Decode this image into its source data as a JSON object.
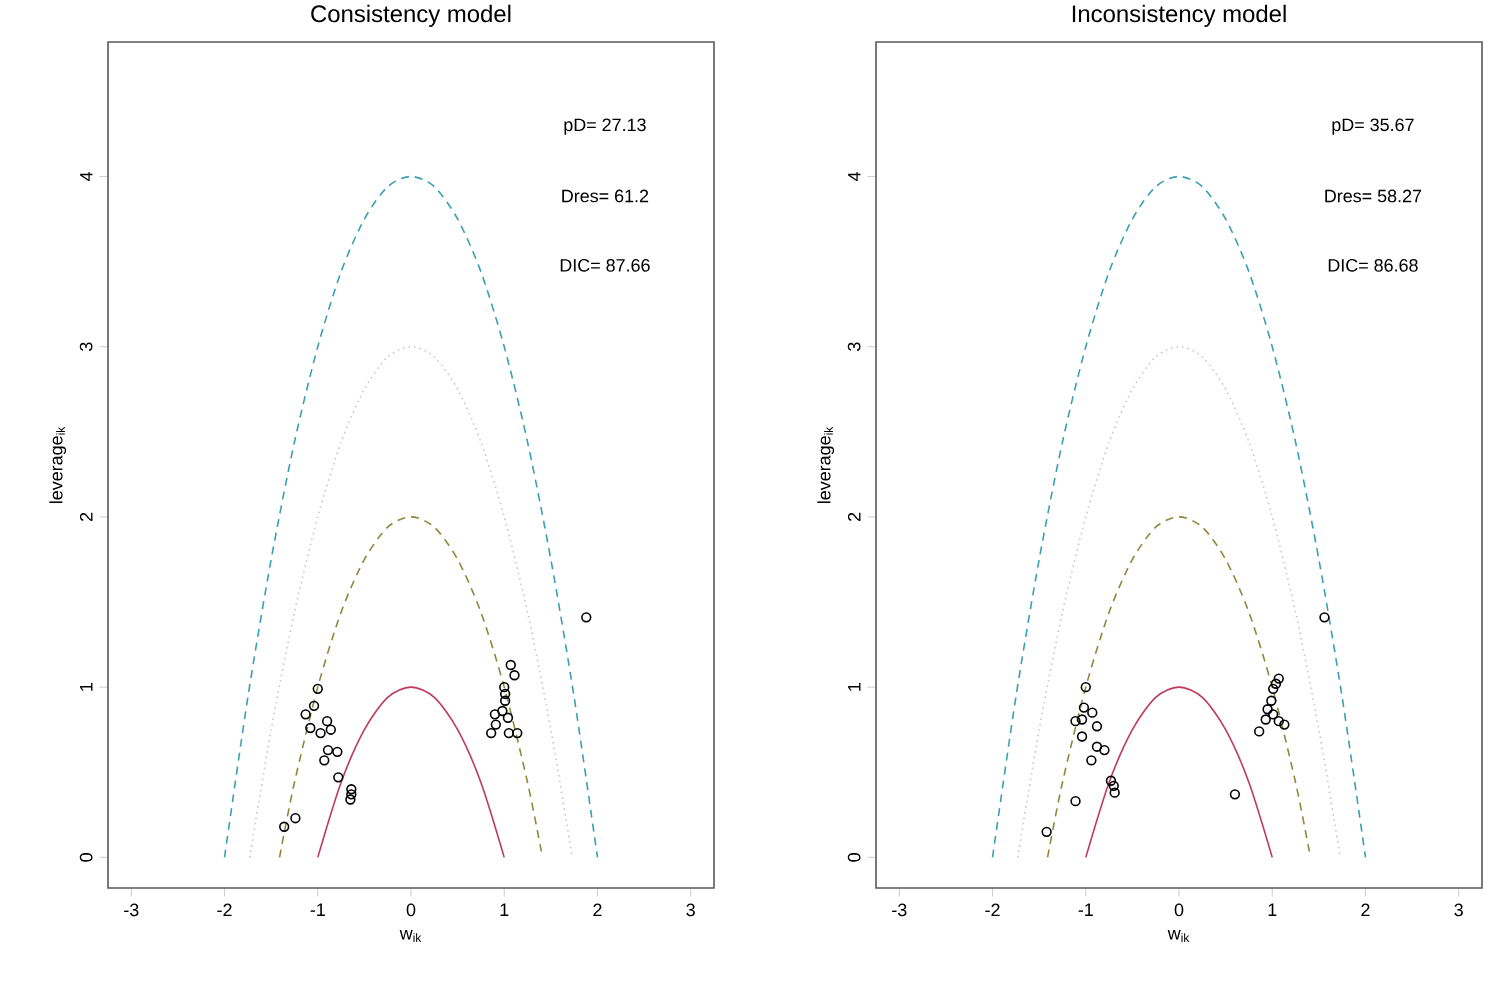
{
  "chart_data": [
    {
      "type": "scatter",
      "title": "Consistency model",
      "xlabel": "w$_{ik}$",
      "ylabel": "leverage$_{ik}$",
      "xlim": [
        -3.25,
        3.25
      ],
      "ylim": [
        -0.18,
        4.79
      ],
      "xticks": [
        -3,
        -2,
        -1,
        0,
        1,
        2,
        3
      ],
      "yticks": [
        0,
        1,
        2,
        3,
        4
      ],
      "annotations": [
        "pD= 27.13",
        "Dres= 61.2",
        "DIC= 87.66"
      ],
      "series": [
        {
          "color": "#000000",
          "marker": "circle",
          "x": [
            -1.36,
            -1.24,
            -1.0,
            -1.04,
            -1.13,
            -1.08,
            -0.97,
            -0.9,
            -0.86,
            -0.89,
            -0.93,
            -0.79,
            -0.78,
            -0.64,
            -0.65,
            -0.64,
            0.86,
            0.91,
            0.9,
            0.98,
            1.01,
            1.0,
            1.01,
            1.07,
            1.11,
            1.04,
            1.05,
            1.14,
            1.88
          ],
          "values": [
            0.18,
            0.23,
            0.99,
            0.89,
            0.84,
            0.76,
            0.73,
            0.8,
            0.75,
            0.63,
            0.57,
            0.62,
            0.47,
            0.4,
            0.34,
            0.37,
            0.73,
            0.78,
            0.84,
            0.86,
            0.92,
            1.0,
            0.96,
            1.13,
            1.07,
            0.82,
            0.73,
            0.73,
            1.41
          ]
        },
        {
          "type": "line",
          "color": "#c0395a",
          "line_style": "solid",
          "marker": "none",
          "x": [
            -1,
            -0.75,
            -0.5,
            -0.25,
            0,
            0.25,
            0.5,
            0.75,
            1
          ],
          "values": [
            0,
            0.44,
            0.75,
            0.94,
            1,
            0.94,
            0.75,
            0.44,
            0
          ]
        },
        {
          "type": "line",
          "color": "#8a8a3c",
          "line_style": "dashed",
          "marker": "none",
          "x": [
            -1.41,
            -1.25,
            -1,
            -0.75,
            -0.5,
            -0.25,
            0,
            0.25,
            0.5,
            0.75,
            1,
            1.25,
            1.41
          ],
          "values": [
            0,
            0.44,
            1,
            1.44,
            1.75,
            1.94,
            2,
            1.94,
            1.75,
            1.44,
            1,
            0.44,
            0
          ]
        },
        {
          "type": "line",
          "color": "#c8c8c8",
          "line_style": "dotted",
          "marker": "none",
          "x": [
            -1.73,
            -1.5,
            -1.25,
            -1,
            -0.75,
            -0.5,
            -0.25,
            0,
            0.25,
            0.5,
            0.75,
            1,
            1.25,
            1.5,
            1.73
          ],
          "values": [
            0,
            0.75,
            1.44,
            2,
            2.44,
            2.75,
            2.94,
            3,
            2.94,
            2.75,
            2.44,
            2,
            1.44,
            0.75,
            0
          ]
        },
        {
          "type": "line",
          "color": "#3a9fb5",
          "line_style": "dashed",
          "marker": "none",
          "x": [
            -2,
            -1.75,
            -1.5,
            -1.25,
            -1,
            -0.75,
            -0.5,
            -0.25,
            0,
            0.25,
            0.5,
            0.75,
            1,
            1.25,
            1.5,
            1.75,
            2
          ],
          "values": [
            0,
            0.94,
            1.75,
            2.44,
            3,
            3.44,
            3.75,
            3.94,
            4,
            3.94,
            3.75,
            3.44,
            3,
            2.44,
            1.75,
            0.94,
            0
          ]
        }
      ]
    },
    {
      "type": "scatter",
      "title": "Inconsistency model",
      "xlabel": "w$_{ik}$",
      "ylabel": "leverage$_{ik}$",
      "xlim": [
        -3.25,
        3.25
      ],
      "ylim": [
        -0.18,
        4.79
      ],
      "xticks": [
        -3,
        -2,
        -1,
        0,
        1,
        2,
        3
      ],
      "yticks": [
        0,
        1,
        2,
        3,
        4
      ],
      "annotations": [
        "pD= 35.67",
        "Dres= 58.27",
        "DIC= 86.68"
      ],
      "series": [
        {
          "color": "#000000",
          "marker": "circle",
          "x": [
            -1.0,
            -1.02,
            -0.93,
            -1.11,
            -1.04,
            -0.88,
            -1.04,
            -0.88,
            -0.8,
            -0.94,
            -0.73,
            -0.7,
            -0.69,
            -1.11,
            -1.42,
            0.6,
            1.56,
            1.07,
            1.04,
            1.01,
            0.99,
            0.95,
            1.01,
            0.93,
            1.07,
            1.13,
            0.86
          ],
          "values": [
            1.0,
            0.88,
            0.85,
            0.8,
            0.81,
            0.77,
            0.71,
            0.65,
            0.63,
            0.57,
            0.45,
            0.42,
            0.38,
            0.33,
            0.15,
            0.37,
            1.41,
            1.05,
            1.02,
            0.99,
            0.92,
            0.87,
            0.84,
            0.81,
            0.8,
            0.78,
            0.74
          ]
        },
        {
          "type": "line",
          "color": "#c0395a",
          "line_style": "solid",
          "marker": "none",
          "x": [
            -1,
            -0.75,
            -0.5,
            -0.25,
            0,
            0.25,
            0.5,
            0.75,
            1
          ],
          "values": [
            0,
            0.44,
            0.75,
            0.94,
            1,
            0.94,
            0.75,
            0.44,
            0
          ]
        },
        {
          "type": "line",
          "color": "#8a8a3c",
          "line_style": "dashed",
          "marker": "none",
          "x": [
            -1.41,
            -1.25,
            -1,
            -0.75,
            -0.5,
            -0.25,
            0,
            0.25,
            0.5,
            0.75,
            1,
            1.25,
            1.41
          ],
          "values": [
            0,
            0.44,
            1,
            1.44,
            1.75,
            1.94,
            2,
            1.94,
            1.75,
            1.44,
            1,
            0.44,
            0
          ]
        },
        {
          "type": "line",
          "color": "#c8c8c8",
          "line_style": "dotted",
          "marker": "none",
          "x": [
            -1.73,
            -1.5,
            -1.25,
            -1,
            -0.75,
            -0.5,
            -0.25,
            0,
            0.25,
            0.5,
            0.75,
            1,
            1.25,
            1.5,
            1.73
          ],
          "values": [
            0,
            0.75,
            1.44,
            2,
            2.44,
            2.75,
            2.94,
            3,
            2.94,
            2.75,
            2.44,
            2,
            1.44,
            0.75,
            0
          ]
        },
        {
          "type": "line",
          "color": "#3a9fb5",
          "line_style": "dashed",
          "marker": "none",
          "x": [
            -2,
            -1.75,
            -1.5,
            -1.25,
            -1,
            -0.75,
            -0.5,
            -0.25,
            0,
            0.25,
            0.5,
            0.75,
            1,
            1.25,
            1.5,
            1.75,
            2
          ],
          "values": [
            0,
            0.94,
            1.75,
            2.44,
            3,
            3.44,
            3.75,
            3.94,
            4,
            3.94,
            3.75,
            3.44,
            3,
            2.44,
            1.75,
            0.94,
            0
          ]
        }
      ]
    }
  ]
}
